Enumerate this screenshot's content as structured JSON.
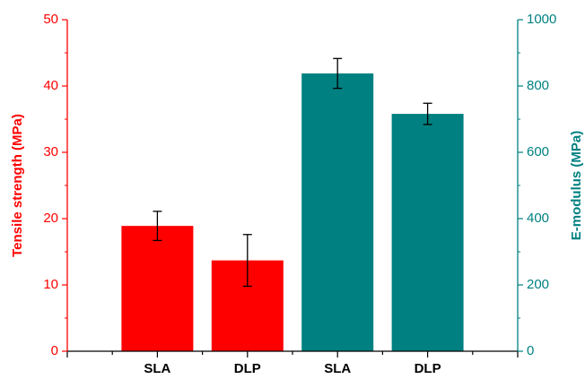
{
  "chart_data": {
    "type": "bar",
    "categories": [
      "SLA",
      "DLP",
      "SLA",
      "DLP"
    ],
    "ylabel": "Tensile strength (MPa)",
    "y2label": "E-modulus (MPa)",
    "ylim": [
      0,
      50
    ],
    "yticks": [
      0,
      10,
      20,
      30,
      40,
      50
    ],
    "y2lim": [
      0,
      1000
    ],
    "y2ticks": [
      0,
      200,
      400,
      600,
      800,
      1000
    ],
    "series": [
      {
        "color": "#ff0000",
        "values": [
          18.9,
          13.7,
          null,
          null
        ],
        "errors": [
          2.2,
          3.9,
          null,
          null
        ]
      },
      {
        "color": "#008080",
        "axis": "y2",
        "values": [
          null,
          null,
          838,
          716
        ],
        "errors": [
          null,
          null,
          45,
          32
        ]
      }
    ]
  }
}
